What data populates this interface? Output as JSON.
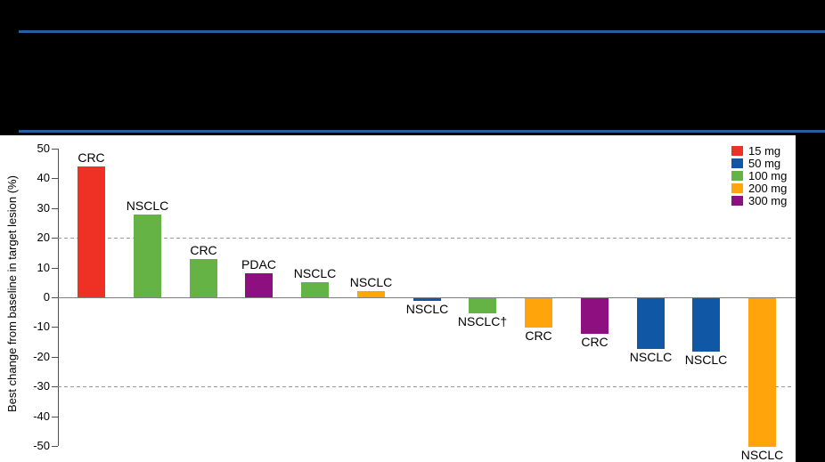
{
  "header": {
    "background": "#000000",
    "rule_color": "#2A5DA8"
  },
  "chart_data": {
    "type": "bar",
    "variant": "waterfall",
    "title": "",
    "xlabel": "",
    "ylabel": "Best change from baseline in target lesion (%)",
    "ylim": [
      -50,
      50
    ],
    "yticks": [
      50,
      40,
      30,
      20,
      10,
      0,
      -10,
      -20,
      -30,
      -40,
      -50
    ],
    "dashed_gridlines": [
      20,
      -30
    ],
    "grid": "dashed reference lines at +20 and -30 only",
    "legend_position": "top-right",
    "legend": [
      {
        "label": "15 mg",
        "color": "#EE3124"
      },
      {
        "label": "50 mg",
        "color": "#1057A5"
      },
      {
        "label": "100 mg",
        "color": "#66B345"
      },
      {
        "label": "200 mg",
        "color": "#FFA40B"
      },
      {
        "label": "300 mg",
        "color": "#8E1080"
      }
    ],
    "bars": [
      {
        "label": "CRC",
        "dose": "15 mg",
        "value": 44
      },
      {
        "label": "NSCLC",
        "dose": "100 mg",
        "value": 28
      },
      {
        "label": "CRC",
        "dose": "100 mg",
        "value": 13
      },
      {
        "label": "PDAC",
        "dose": "300 mg",
        "value": 8
      },
      {
        "label": "NSCLC",
        "dose": "100 mg",
        "value": 5
      },
      {
        "label": "NSCLC",
        "dose": "200 mg",
        "value": 2
      },
      {
        "label": "NSCLC",
        "dose": "50 mg",
        "value": -1
      },
      {
        "label": "NSCLC†",
        "dose": "100 mg",
        "value": -5
      },
      {
        "label": "CRC",
        "dose": "200 mg",
        "value": -10
      },
      {
        "label": "CRC",
        "dose": "300 mg",
        "value": -12
      },
      {
        "label": "NSCLC",
        "dose": "50 mg",
        "value": -17
      },
      {
        "label": "NSCLC",
        "dose": "50 mg",
        "value": -18
      },
      {
        "label": "NSCLC",
        "dose": "200 mg",
        "value": -50
      }
    ]
  }
}
